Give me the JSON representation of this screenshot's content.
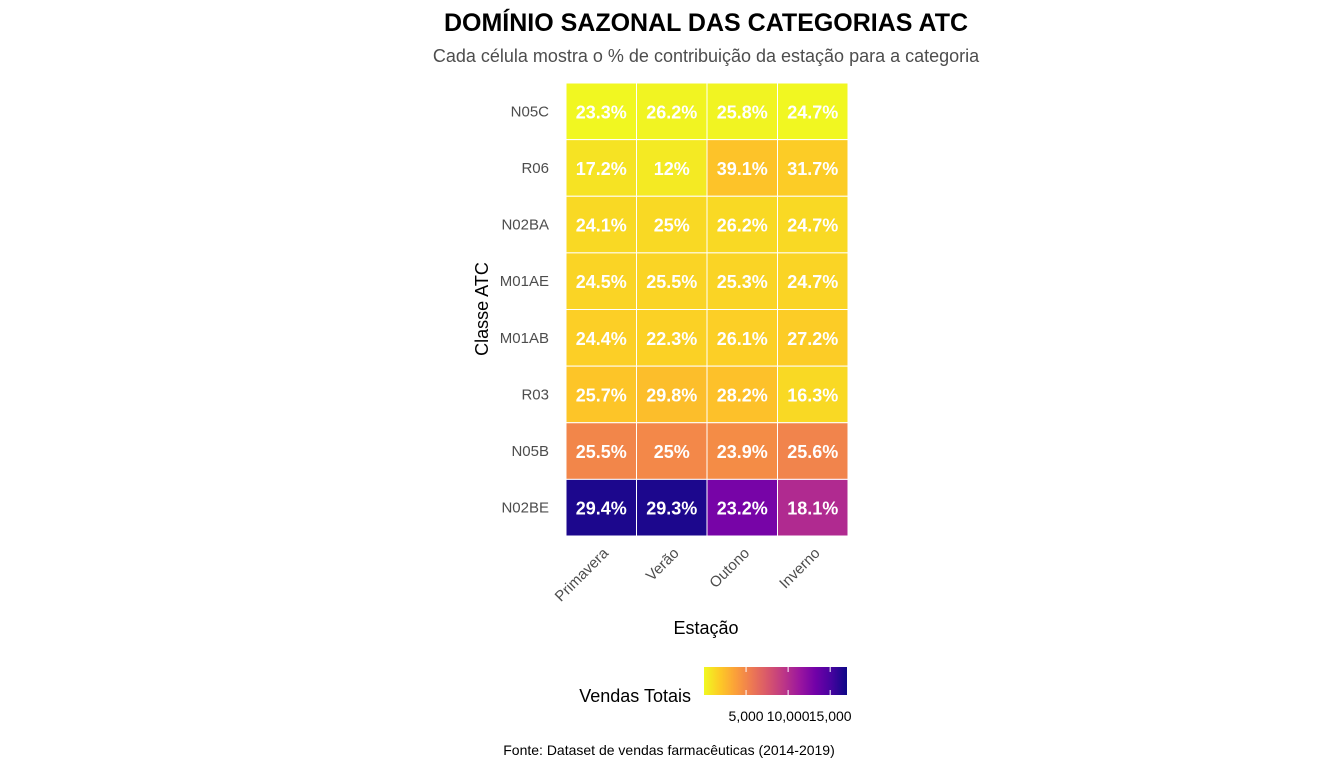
{
  "chart_data": {
    "type": "heatmap",
    "title": "DOMÍNIO SAZONAL DAS CATEGORIAS ATC",
    "subtitle": "Cada célula mostra o % de contribuição da estação para a categoria",
    "xlabel": "Estação",
    "ylabel": "Classe ATC",
    "x_categories": [
      "Primavera",
      "Verão",
      "Outono",
      "Inverno"
    ],
    "y_categories": [
      "N05C",
      "R06",
      "N02BA",
      "M01AE",
      "M01AB",
      "R03",
      "N05B",
      "N02BE"
    ],
    "cell_labels": [
      [
        "23.3%",
        "26.2%",
        "25.8%",
        "24.7%"
      ],
      [
        "17.2%",
        "12%",
        "39.1%",
        "31.7%"
      ],
      [
        "24.1%",
        "25%",
        "26.2%",
        "24.7%"
      ],
      [
        "24.5%",
        "25.5%",
        "25.3%",
        "24.7%"
      ],
      [
        "24.4%",
        "22.3%",
        "26.1%",
        "27.2%"
      ],
      [
        "25.7%",
        "29.8%",
        "28.2%",
        "16.3%"
      ],
      [
        "25.5%",
        "25%",
        "23.9%",
        "25.6%"
      ],
      [
        "29.4%",
        "29.3%",
        "23.2%",
        "18.1%"
      ]
    ],
    "fill_values": [
      [
        100,
        200,
        200,
        100
      ],
      [
        900,
        600,
        2200,
        1800
      ],
      [
        1300,
        1300,
        1300,
        1300
      ],
      [
        1500,
        1500,
        1500,
        1500
      ],
      [
        1700,
        1600,
        1700,
        1800
      ],
      [
        2100,
        2400,
        2300,
        1300
      ],
      [
        5000,
        4900,
        4700,
        5100
      ],
      [
        16500,
        16500,
        13000,
        10200
      ]
    ],
    "legend": {
      "title": "Vendas Totais",
      "position": "bottom",
      "min": 0,
      "max": 17000,
      "ticks": [
        5000,
        10000,
        15000
      ],
      "tick_labels": [
        "5,000",
        "10,000",
        "15,000"
      ],
      "palette": [
        "#f0f921",
        "#fdca26",
        "#fb9f3a",
        "#ed7953",
        "#d8576b",
        "#bd3786",
        "#9c179e",
        "#7201a8",
        "#46039f",
        "#0d0887"
      ]
    },
    "caption": "Fonte: Dataset de vendas farmacêuticas (2014-2019)",
    "grid": false
  }
}
